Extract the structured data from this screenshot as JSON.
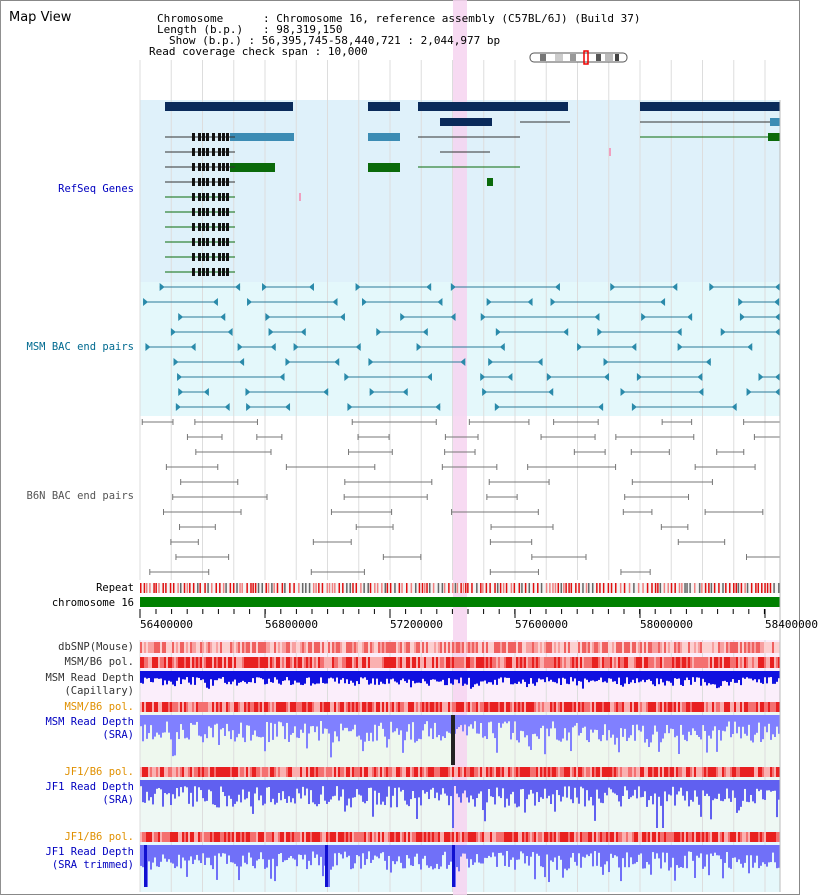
{
  "header": {
    "title": "Map View",
    "chromosome_label": "Chromosome",
    "chromosome_value": "Chromosome 16, reference assembly (C57BL/6J) (Build 37)",
    "length_label": "Length (b.p.)",
    "length_value": "98,319,150",
    "show_label": "Show (b.p.)",
    "show_value": "56,395,745-58,440,721 : 2,044,977 bp",
    "coverage_label": "Read coverage check span",
    "coverage_value": "10,000"
  },
  "tracks": {
    "refseq": "RefSeq Genes",
    "msm_bac": "MSM BAC end pairs",
    "b6n_bac": "B6N BAC end pairs",
    "repeat": "Repeat",
    "chromosome": "chromosome 16",
    "dbsnp": "dbSNP(Mouse)",
    "msm_b6_pol_1": "MSM/B6 pol.",
    "msm_depth_cap_1": "MSM Read Depth",
    "msm_depth_cap_2": "(Capillary)",
    "msm_b6_pol_2": "MSM/B6 pol.",
    "msm_depth_sra_1": "MSM Read Depth",
    "msm_depth_sra_2": "(SRA)",
    "jf1_b6_pol_1": "JF1/B6 pol.",
    "jf1_depth_sra_1": "JF1 Read Depth",
    "jf1_depth_sra_2": "(SRA)",
    "jf1_b6_pol_2": "JF1/B6 pol.",
    "jf1_depth_trim_1": "JF1 Read Depth",
    "jf1_depth_trim_2": "(SRA trimmed)"
  },
  "axis": {
    "ticks": [
      "56400000",
      "56800000",
      "57200000",
      "57600000",
      "58000000",
      "58400000"
    ]
  },
  "colors": {
    "refseq_bg": "#dff1fa",
    "msm_bg": "#e4f8fb",
    "highlight": "#f6d4f0",
    "refseq_label": "#0000c0",
    "msm_label": "#006a90",
    "b6n_label": "#555555",
    "orange_label": "#e09000",
    "blue_label": "#0000c0",
    "depth_blue": "#1010e0",
    "depth_light": "#8080ff",
    "chrom_green": "#008000"
  }
}
